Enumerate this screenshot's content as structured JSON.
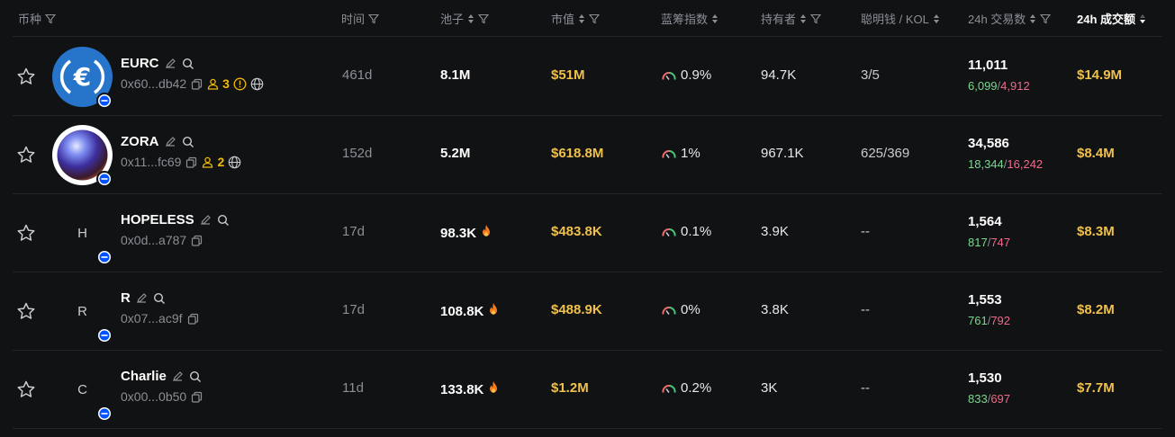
{
  "header": {
    "token": "币种",
    "age": "时间",
    "pool": "池子",
    "mcap": "市值",
    "bluechip": "蓝筹指数",
    "holders": "持有者",
    "smart": "聪明钱 / KOL",
    "txs": "24h 交易数",
    "volume": "24h 成交额"
  },
  "rows": [
    {
      "name": "EURC",
      "address": "0x60...db42",
      "holder_tag": "3",
      "letter": "",
      "age": "461d",
      "pool": "8.1M",
      "hot": false,
      "mcap": "$51M",
      "bluechip": "0.9%",
      "holders": "94.7K",
      "smart": "3/5",
      "txs": "11,011",
      "buys": "6,099",
      "sells": "4,912",
      "volume": "$14.9M"
    },
    {
      "name": "ZORA",
      "address": "0x11...fc69",
      "holder_tag": "2",
      "letter": "",
      "age": "152d",
      "pool": "5.2M",
      "hot": false,
      "mcap": "$618.8M",
      "bluechip": "1%",
      "holders": "967.1K",
      "smart": "625/369",
      "txs": "34,586",
      "buys": "18,344",
      "sells": "16,242",
      "volume": "$8.4M"
    },
    {
      "name": "HOPELESS",
      "address": "0x0d...a787",
      "holder_tag": "",
      "letter": "H",
      "age": "17d",
      "pool": "98.3K",
      "hot": true,
      "mcap": "$483.8K",
      "bluechip": "0.1%",
      "holders": "3.9K",
      "smart": "--",
      "txs": "1,564",
      "buys": "817",
      "sells": "747",
      "volume": "$8.3M"
    },
    {
      "name": "R",
      "address": "0x07...ac9f",
      "holder_tag": "",
      "letter": "R",
      "age": "17d",
      "pool": "108.8K",
      "hot": true,
      "mcap": "$488.9K",
      "bluechip": "0%",
      "holders": "3.8K",
      "smart": "--",
      "txs": "1,553",
      "buys": "761",
      "sells": "792",
      "volume": "$8.2M"
    },
    {
      "name": "Charlie",
      "address": "0x00...0b50",
      "holder_tag": "",
      "letter": "C",
      "age": "11d",
      "pool": "133.8K",
      "hot": true,
      "mcap": "$1.2M",
      "bluechip": "0.2%",
      "holders": "3K",
      "smart": "--",
      "txs": "1,530",
      "buys": "833",
      "sells": "697",
      "volume": "$7.7M"
    }
  ]
}
